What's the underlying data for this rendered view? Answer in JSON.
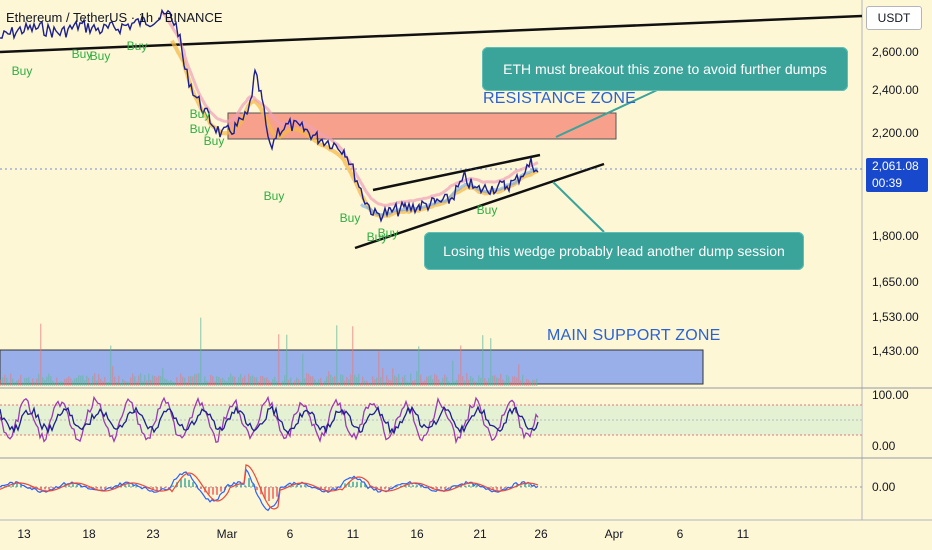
{
  "header": {
    "symbol_title": "Ethereum / TetherUS · 1h · BINANCE",
    "currency": "USDT"
  },
  "price_axis": {
    "labels": [
      "2,600.00",
      "2,400.00",
      "2,200.00",
      "1,800.00",
      "1,650.00",
      "1,530.00",
      "1,430.00"
    ],
    "values": [
      2600,
      2400,
      2200,
      1800,
      1650,
      1530,
      1430
    ]
  },
  "current_price": {
    "price": "2,061.08",
    "countdown": "00:39",
    "tag_color": "#1848cc"
  },
  "oscillator_axis": {
    "labels": [
      "100.00",
      "0.00"
    ]
  },
  "macd_axis": {
    "labels": [
      "0.00"
    ]
  },
  "time_axis": {
    "labels": [
      "13",
      "18",
      "23",
      "Mar",
      "6",
      "11",
      "16",
      "21",
      "26",
      "Apr",
      "6",
      "11"
    ]
  },
  "annotations": {
    "breakout_note": "ETH must breakout this zone to avoid further dumps",
    "wedge_note": "Losing this wedge probably lead another dump session",
    "resistance_label": "RESISTANCE ZONE",
    "support_label": "MAIN SUPPORT ZONE",
    "buy_label": "Buy"
  },
  "colors": {
    "background": "#fdf7d6",
    "resistance_zone": "#f7a08c",
    "support_zone": "#8ea6ec",
    "callout": "#3aa39a",
    "buy_text": "#2fae43",
    "price_line": "#1c1f8c"
  }
}
